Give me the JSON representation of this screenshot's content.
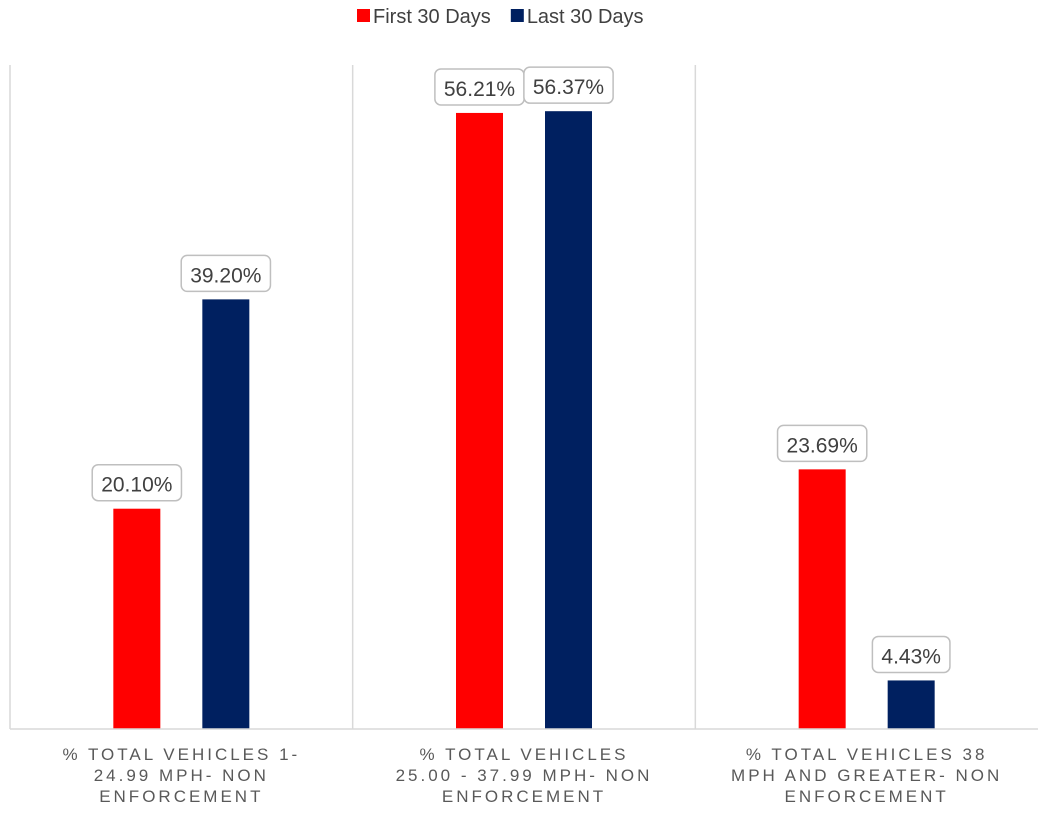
{
  "chart_data": {
    "type": "bar",
    "categories": [
      [
        "% TOTAL VEHICLES 1-",
        "24.99 MPH- NON",
        "ENFORCEMENT"
      ],
      [
        "% TOTAL VEHICLES",
        "25.00 - 37.99 MPH- NON",
        "ENFORCEMENT"
      ],
      [
        "% TOTAL VEHICLES 38",
        "MPH AND GREATER- NON",
        "ENFORCEMENT"
      ]
    ],
    "series": [
      {
        "name": "First 30 Days",
        "color": "#ff0000",
        "values": [
          20.1,
          56.21,
          23.69
        ],
        "labels": [
          "20.10%",
          "56.21%",
          "23.69%"
        ]
      },
      {
        "name": "Last 30 Days",
        "color": "#002060",
        "values": [
          39.2,
          56.37,
          4.43
        ],
        "labels": [
          "39.20%",
          "56.37%",
          "4.43%"
        ]
      }
    ],
    "ylim": [
      0,
      62
    ],
    "grid": false,
    "legend": "top-center"
  }
}
